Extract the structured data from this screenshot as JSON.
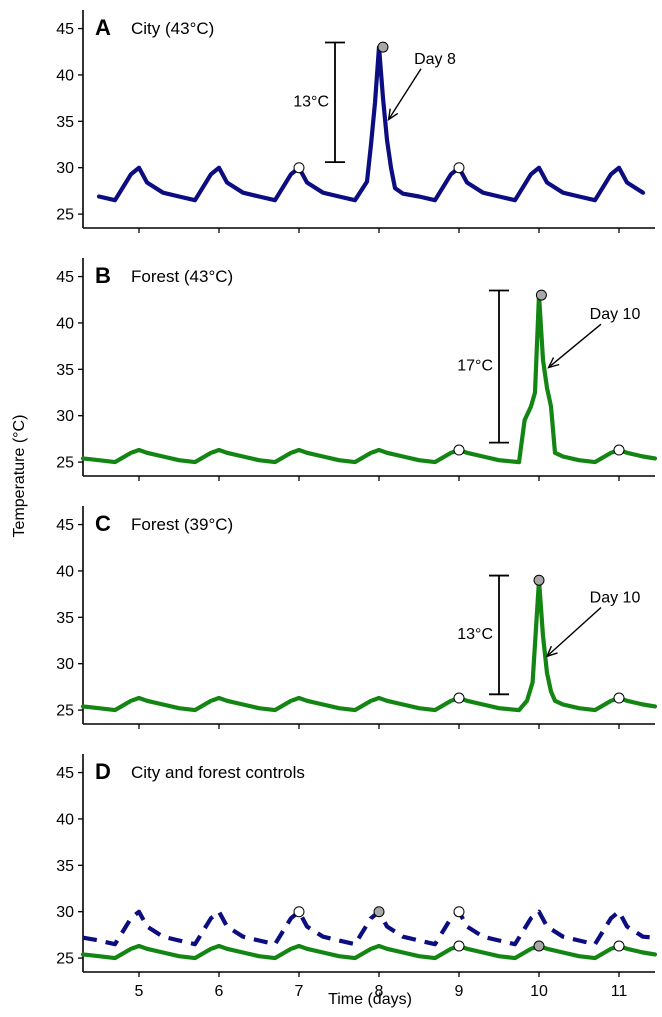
{
  "figure": {
    "xlabel": "Time (days)",
    "ylabel": "Temperature (°C)",
    "x_ticks": [
      5,
      6,
      7,
      8,
      9,
      10,
      11
    ],
    "y_ticks": [
      25,
      30,
      35,
      40,
      45
    ],
    "colors": {
      "city": "#0d0d82",
      "forest": "#138512",
      "point_open": "#ffffff",
      "point_peak": "#a8a8a8"
    }
  },
  "chart_data": [
    {
      "type": "line",
      "panel": "A",
      "title": "City (43°C)",
      "xlim": [
        4.3,
        11.45
      ],
      "ylim": [
        23.5,
        47
      ],
      "grid": false,
      "series": [
        {
          "color": "#0d0d82",
          "style": "solid",
          "baseline_min": 26.5,
          "baseline_max": 30,
          "first_peak_day": 5,
          "peak_period_days": 1,
          "x": [
            4.5,
            4.7,
            4.9,
            5.0,
            5.1,
            5.3,
            5.5,
            5.7,
            5.9,
            6.0,
            6.1,
            6.3,
            6.5,
            6.7,
            6.9,
            7.0,
            7.1,
            7.3,
            7.5,
            7.7,
            7.85,
            7.9,
            7.95,
            8.0,
            8.05,
            8.1,
            8.15,
            8.2,
            8.3,
            8.5,
            8.7,
            8.9,
            9.0,
            9.1,
            9.3,
            9.5,
            9.7,
            9.9,
            10.0,
            10.1,
            10.3,
            10.5,
            10.7,
            10.9,
            11.0,
            11.1,
            11.3
          ],
          "y": [
            26.9,
            26.5,
            29.3,
            30.0,
            28.4,
            27.3,
            26.9,
            26.5,
            29.3,
            30.0,
            28.4,
            27.3,
            26.9,
            26.5,
            29.3,
            30.0,
            28.4,
            27.3,
            26.9,
            26.5,
            28.5,
            32.5,
            37.0,
            43.0,
            37.5,
            33.0,
            30.0,
            27.8,
            27.2,
            26.9,
            26.5,
            29.3,
            30.0,
            28.4,
            27.3,
            26.9,
            26.5,
            29.3,
            30.0,
            28.4,
            27.3,
            26.9,
            26.5,
            29.3,
            30.0,
            28.4,
            27.3
          ]
        }
      ],
      "points": [
        {
          "x": 7,
          "y": 30,
          "kind": "open"
        },
        {
          "x": 8.05,
          "y": 43,
          "kind": "peak"
        },
        {
          "x": 9,
          "y": 30,
          "kind": "open"
        }
      ],
      "range_bar": {
        "x": 7.45,
        "ymin": 30.6,
        "ymax": 43.5,
        "label": "13°C"
      },
      "arrow": {
        "label": "Day 8",
        "text_x": 8.7,
        "text_y": 41.2,
        "to_x": 8.12,
        "to_y": 35.2
      }
    },
    {
      "type": "line",
      "panel": "B",
      "title": "Forest (43°C)",
      "xlim": [
        4.3,
        11.45
      ],
      "ylim": [
        23.5,
        47
      ],
      "grid": false,
      "series": [
        {
          "color": "#138512",
          "style": "solid",
          "x": [
            4.3,
            4.5,
            4.7,
            4.9,
            5.0,
            5.1,
            5.3,
            5.5,
            5.7,
            5.9,
            6.0,
            6.1,
            6.3,
            6.5,
            6.7,
            6.9,
            7.0,
            7.1,
            7.3,
            7.5,
            7.7,
            7.9,
            8.0,
            8.1,
            8.3,
            8.5,
            8.7,
            8.9,
            9.0,
            9.1,
            9.3,
            9.5,
            9.75,
            9.82,
            9.9,
            9.95,
            10.0,
            10.05,
            10.1,
            10.15,
            10.2,
            10.3,
            10.5,
            10.7,
            10.9,
            11.0,
            11.1,
            11.3,
            11.45
          ],
          "y": [
            25.4,
            25.2,
            25.0,
            26.0,
            26.3,
            26.0,
            25.6,
            25.2,
            25.0,
            26.0,
            26.3,
            26.0,
            25.6,
            25.2,
            25.0,
            26.0,
            26.3,
            26.0,
            25.6,
            25.2,
            25.0,
            26.0,
            26.3,
            26.0,
            25.6,
            25.2,
            25.0,
            26.0,
            26.3,
            26.0,
            25.6,
            25.2,
            25.0,
            29.5,
            31.0,
            32.5,
            43.0,
            36.0,
            33.0,
            31.0,
            26.0,
            25.6,
            25.2,
            25.0,
            26.0,
            26.3,
            26.0,
            25.6,
            25.4
          ]
        }
      ],
      "points": [
        {
          "x": 9,
          "y": 26.3,
          "kind": "open"
        },
        {
          "x": 10.03,
          "y": 43,
          "kind": "peak"
        },
        {
          "x": 11,
          "y": 26.3,
          "kind": "open"
        }
      ],
      "range_bar": {
        "x": 9.5,
        "ymin": 27.1,
        "ymax": 43.5,
        "label": "17°C"
      },
      "arrow": {
        "label": "Day 10",
        "text_x": 10.95,
        "text_y": 40.4,
        "to_x": 10.12,
        "to_y": 35.2
      }
    },
    {
      "type": "line",
      "panel": "C",
      "title": "Forest (39°C)",
      "xlim": [
        4.3,
        11.45
      ],
      "ylim": [
        23.5,
        47
      ],
      "grid": false,
      "series": [
        {
          "color": "#138512",
          "style": "solid",
          "x": [
            4.3,
            4.5,
            4.7,
            4.9,
            5.0,
            5.1,
            5.3,
            5.5,
            5.7,
            5.9,
            6.0,
            6.1,
            6.3,
            6.5,
            6.7,
            6.9,
            7.0,
            7.1,
            7.3,
            7.5,
            7.7,
            7.9,
            8.0,
            8.1,
            8.3,
            8.5,
            8.7,
            8.9,
            9.0,
            9.1,
            9.3,
            9.5,
            9.75,
            9.85,
            9.92,
            10.0,
            10.05,
            10.1,
            10.15,
            10.2,
            10.3,
            10.5,
            10.7,
            10.9,
            11.0,
            11.1,
            11.3,
            11.45
          ],
          "y": [
            25.4,
            25.2,
            25.0,
            26.0,
            26.3,
            26.0,
            25.6,
            25.2,
            25.0,
            26.0,
            26.3,
            26.0,
            25.6,
            25.2,
            25.0,
            26.0,
            26.3,
            26.0,
            25.6,
            25.2,
            25.0,
            26.0,
            26.3,
            26.0,
            25.6,
            25.2,
            25.0,
            26.0,
            26.3,
            26.0,
            25.6,
            25.2,
            25.0,
            26.0,
            28.0,
            39.0,
            33.0,
            29.0,
            27.0,
            26.0,
            25.6,
            25.2,
            25.0,
            26.0,
            26.3,
            26.0,
            25.6,
            25.4
          ]
        }
      ],
      "points": [
        {
          "x": 9,
          "y": 26.3,
          "kind": "open"
        },
        {
          "x": 10.0,
          "y": 39,
          "kind": "peak"
        },
        {
          "x": 11,
          "y": 26.3,
          "kind": "open"
        }
      ],
      "range_bar": {
        "x": 9.5,
        "ymin": 26.7,
        "ymax": 39.5,
        "label": "13°C"
      },
      "arrow": {
        "label": "Day 10",
        "text_x": 10.95,
        "text_y": 36.6,
        "to_x": 10.1,
        "to_y": 30.8
      }
    },
    {
      "type": "line",
      "panel": "D",
      "title": "City and forest controls",
      "xlim": [
        4.3,
        11.45
      ],
      "ylim": [
        23.5,
        47
      ],
      "grid": false,
      "series": [
        {
          "color": "#0d0d82",
          "style": "dashed",
          "x": [
            4.3,
            4.5,
            4.7,
            4.9,
            5.0,
            5.1,
            5.3,
            5.5,
            5.7,
            5.9,
            6.0,
            6.1,
            6.3,
            6.5,
            6.7,
            6.9,
            7.0,
            7.1,
            7.3,
            7.5,
            7.7,
            7.9,
            8.0,
            8.1,
            8.3,
            8.5,
            8.7,
            8.9,
            9.0,
            9.1,
            9.3,
            9.5,
            9.7,
            9.9,
            10.0,
            10.1,
            10.3,
            10.5,
            10.7,
            10.9,
            11.0,
            11.1,
            11.3,
            11.45
          ],
          "y": [
            27.2,
            26.9,
            26.5,
            29.3,
            30.0,
            28.4,
            27.3,
            26.9,
            26.5,
            29.3,
            30.0,
            28.4,
            27.3,
            26.9,
            26.5,
            29.3,
            30.0,
            28.4,
            27.3,
            26.9,
            26.5,
            29.3,
            30.0,
            28.4,
            27.3,
            26.9,
            26.5,
            29.3,
            30.0,
            28.4,
            27.3,
            26.9,
            26.5,
            29.3,
            30.0,
            28.4,
            27.3,
            26.9,
            26.5,
            29.3,
            30.0,
            28.4,
            27.3,
            27.2
          ]
        },
        {
          "color": "#138512",
          "style": "solid",
          "x": [
            4.3,
            4.5,
            4.7,
            4.9,
            5.0,
            5.1,
            5.3,
            5.5,
            5.7,
            5.9,
            6.0,
            6.1,
            6.3,
            6.5,
            6.7,
            6.9,
            7.0,
            7.1,
            7.3,
            7.5,
            7.7,
            7.9,
            8.0,
            8.1,
            8.3,
            8.5,
            8.7,
            8.9,
            9.0,
            9.1,
            9.3,
            9.5,
            9.7,
            9.9,
            10.0,
            10.1,
            10.3,
            10.5,
            10.7,
            10.9,
            11.0,
            11.1,
            11.3,
            11.45
          ],
          "y": [
            25.4,
            25.2,
            25.0,
            26.0,
            26.3,
            26.0,
            25.6,
            25.2,
            25.0,
            26.0,
            26.3,
            26.0,
            25.6,
            25.2,
            25.0,
            26.0,
            26.3,
            26.0,
            25.6,
            25.2,
            25.0,
            26.0,
            26.3,
            26.0,
            25.6,
            25.2,
            25.0,
            26.0,
            26.3,
            26.0,
            25.6,
            25.2,
            25.0,
            26.0,
            26.3,
            26.0,
            25.6,
            25.2,
            25.0,
            26.0,
            26.3,
            26.0,
            25.6,
            25.4
          ]
        }
      ],
      "points": [
        {
          "x": 7,
          "y": 30,
          "kind": "open"
        },
        {
          "x": 8,
          "y": 30,
          "kind": "peak"
        },
        {
          "x": 9,
          "y": 30,
          "kind": "open"
        },
        {
          "x": 9,
          "y": 26.3,
          "kind": "open"
        },
        {
          "x": 10,
          "y": 26.3,
          "kind": "peak"
        },
        {
          "x": 11,
          "y": 26.3,
          "kind": "open"
        }
      ]
    }
  ]
}
